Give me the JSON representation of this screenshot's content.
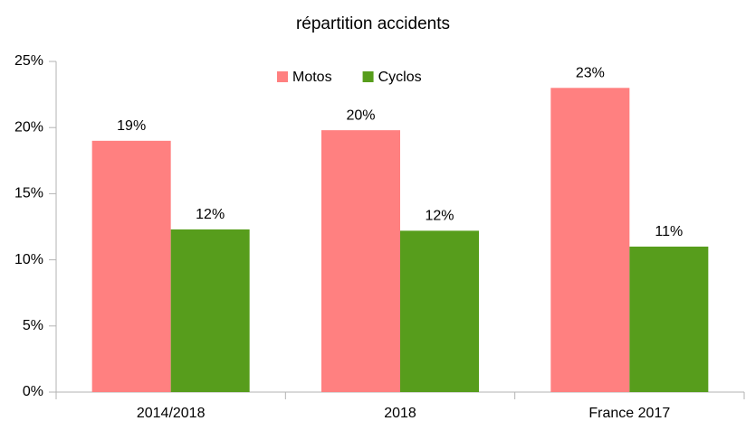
{
  "chart_data": {
    "type": "bar",
    "title": "répartition accidents",
    "categories": [
      "2014/2018",
      "2018",
      "France 2017"
    ],
    "series": [
      {
        "name": "Motos",
        "color": "#ff8080",
        "values": [
          19,
          19.8,
          23
        ],
        "value_labels": [
          "19%",
          "20%",
          "23%"
        ]
      },
      {
        "name": "Cyclos",
        "color": "#579d1c",
        "values": [
          12.3,
          12.2,
          11
        ],
        "value_labels": [
          "12%",
          "12%",
          "11%"
        ]
      }
    ],
    "ylim": [
      0,
      25
    ],
    "yticks": [
      {
        "value": 0,
        "label": "0%"
      },
      {
        "value": 5,
        "label": "5%"
      },
      {
        "value": 10,
        "label": "10%"
      },
      {
        "value": 15,
        "label": "15%"
      },
      {
        "value": 20,
        "label": "20%"
      },
      {
        "value": 25,
        "label": "25%"
      }
    ],
    "grid": false,
    "legend": "top"
  }
}
